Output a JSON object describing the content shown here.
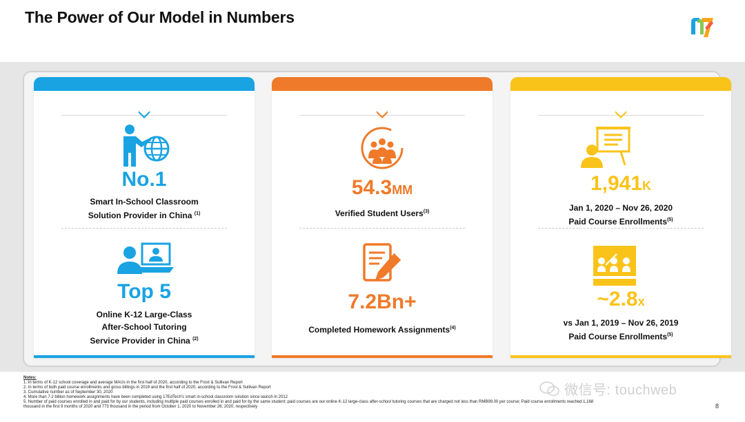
{
  "title": "The Power of Our Model in Numbers",
  "colors": {
    "blue": "#19a3e3",
    "orange": "#ef7a2a",
    "yellow": "#f9c31a"
  },
  "cards": {
    "blue": {
      "top": {
        "icon": "teacher-globe-icon",
        "value": "No.1",
        "desc_line1": "Smart In-School Classroom",
        "desc_line2": "Solution Provider in China",
        "note_ref": "(1)"
      },
      "bottom": {
        "icon": "online-class-icon",
        "value": "Top 5",
        "desc_line1": "Online K-12 Large-Class",
        "desc_line2": "After-School Tutoring",
        "desc_line3": "Service Provider in China",
        "note_ref": "(2)"
      }
    },
    "orange": {
      "top": {
        "icon": "users-group-icon",
        "value": "54.3",
        "unit": "MM",
        "desc": "Verified Student Users",
        "note_ref": "(3)"
      },
      "bottom": {
        "icon": "homework-pencil-icon",
        "value": "7.2Bn+",
        "desc": "Completed Homework Assignments",
        "note_ref": "(4)"
      }
    },
    "yellow": {
      "top": {
        "icon": "presenter-board-icon",
        "value": "1,941",
        "unit": "K",
        "desc_line1": "Jan 1, 2020 – Nov 26, 2020",
        "desc_line2": "Paid Course Enrollments",
        "note_ref": "(5)"
      },
      "bottom": {
        "icon": "classroom-icon",
        "value": "~2.8",
        "unit": "x",
        "desc_line1": "vs Jan 1, 2019 – Nov 26, 2019",
        "desc_line2": "Paid Course Enrollments",
        "note_ref": "(5)"
      }
    }
  },
  "notes": {
    "heading": "Notes:",
    "items": [
      "1.    In terms of K-12 school coverage and average MAUs in the first half of 2020, according to the Frost & Sullivan Report",
      "2.    In terms of both paid course enrollments and gross billings in 2019 and the first half of 2020, according to the Frost & Sullivan Report",
      "3.    Cumulative number as of September 30, 2020",
      "4.    More than 7.2 billion homework assignments have been completed using 17EdTech's smart in-school classroom solution since launch in 2012",
      "5.    Number of paid courses enrolled in and paid for by our students, including multiple paid courses enrolled in and paid for by the same student; paid courses are our online K-12 large-class after-school tutoring courses that are charged not less than RMB99.00 per course; Paid course enrollments reached 1,168",
      "       thousand in the first 9 months of 2020 and 773 thousand in the period from October 1, 2020 to November 26, 2020, respectively"
    ]
  },
  "page_number": "8",
  "watermark": "微信号: touchweb"
}
